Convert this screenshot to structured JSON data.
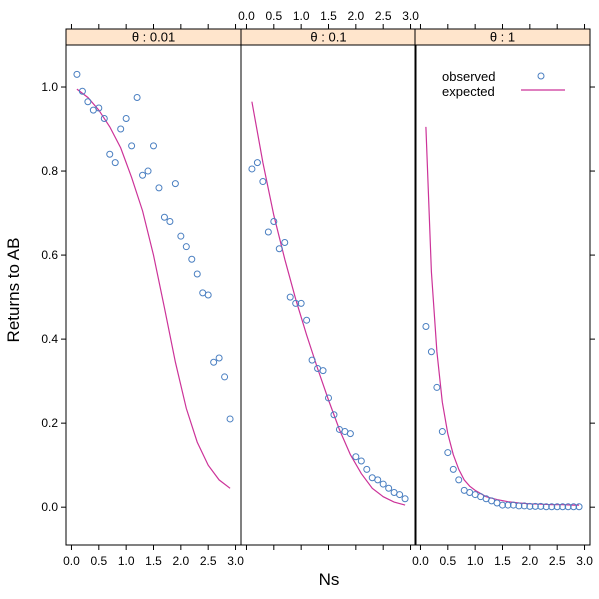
{
  "chart_data": {
    "type": "scatter",
    "layout": "lattice-panels",
    "xlabel": "Ns",
    "ylabel": "Returns to AB",
    "xlim": [
      -0.1,
      3.1
    ],
    "ylim": [
      -0.09,
      1.1
    ],
    "x_ticks": [
      "0.0",
      "0.5",
      "1.0",
      "1.5",
      "2.0",
      "2.5",
      "3.0"
    ],
    "y_ticks": [
      "0.0",
      "0.2",
      "0.4",
      "0.6",
      "0.8",
      "1.0"
    ],
    "x_tick_values": [
      0,
      0.5,
      1.0,
      1.5,
      2.0,
      2.5,
      3.0
    ],
    "y_tick_values": [
      0,
      0.2,
      0.4,
      0.6,
      0.8,
      1.0
    ],
    "colors": {
      "observed": "#4a7fc1",
      "expected": "#cc3399",
      "strip": "#ffe5cc"
    },
    "legend": {
      "placement": "top-right",
      "entries": [
        {
          "label": "observed",
          "symbol": "o"
        },
        {
          "label": "expected",
          "symbol": "line"
        }
      ]
    },
    "panels": [
      {
        "strip_label": "θ : 0.01",
        "observed": {
          "x": [
            0.1,
            0.2,
            0.3,
            0.4,
            0.5,
            0.6,
            0.7,
            0.8,
            0.9,
            1.0,
            1.1,
            1.2,
            1.3,
            1.4,
            1.5,
            1.6,
            1.7,
            1.8,
            1.9,
            2.0,
            2.1,
            2.2,
            2.3,
            2.4,
            2.5,
            2.6,
            2.7,
            2.8,
            2.9
          ],
          "y": [
            1.03,
            0.99,
            0.965,
            0.945,
            0.95,
            0.925,
            0.84,
            0.82,
            0.9,
            0.925,
            0.86,
            0.975,
            0.79,
            0.8,
            0.86,
            0.76,
            0.69,
            0.68,
            0.77,
            0.645,
            0.62,
            0.59,
            0.555,
            0.51,
            0.505,
            0.345,
            0.355,
            0.31,
            0.21
          ]
        },
        "expected": {
          "x": [
            0.1,
            0.3,
            0.5,
            0.7,
            0.9,
            1.1,
            1.3,
            1.5,
            1.7,
            1.9,
            2.1,
            2.3,
            2.5,
            2.7,
            2.9
          ],
          "y": [
            0.995,
            0.975,
            0.945,
            0.905,
            0.855,
            0.785,
            0.705,
            0.6,
            0.475,
            0.345,
            0.235,
            0.155,
            0.1,
            0.065,
            0.045
          ]
        }
      },
      {
        "strip_label": "θ : 0.1",
        "observed": {
          "x": [
            0.1,
            0.2,
            0.3,
            0.4,
            0.5,
            0.6,
            0.7,
            0.8,
            0.9,
            1.0,
            1.1,
            1.2,
            1.3,
            1.4,
            1.5,
            1.6,
            1.7,
            1.8,
            1.9,
            2.0,
            2.1,
            2.2,
            2.3,
            2.4,
            2.5,
            2.6,
            2.7,
            2.8,
            2.9
          ],
          "y": [
            0.805,
            0.82,
            0.775,
            0.655,
            0.68,
            0.615,
            0.63,
            0.5,
            0.485,
            0.485,
            0.445,
            0.35,
            0.33,
            0.325,
            0.26,
            0.22,
            0.185,
            0.18,
            0.175,
            0.12,
            0.11,
            0.09,
            0.07,
            0.065,
            0.055,
            0.045,
            0.035,
            0.03,
            0.02
          ]
        },
        "expected": {
          "x": [
            0.1,
            0.3,
            0.5,
            0.7,
            0.9,
            1.1,
            1.3,
            1.5,
            1.7,
            1.9,
            2.1,
            2.3,
            2.5,
            2.7,
            2.9
          ],
          "y": [
            0.965,
            0.82,
            0.695,
            0.59,
            0.495,
            0.41,
            0.33,
            0.255,
            0.185,
            0.125,
            0.08,
            0.045,
            0.025,
            0.012,
            0.005
          ]
        }
      },
      {
        "strip_label": "θ : 1",
        "observed": {
          "x": [
            0.1,
            0.2,
            0.3,
            0.4,
            0.5,
            0.6,
            0.7,
            0.8,
            0.9,
            1.0,
            1.1,
            1.2,
            1.3,
            1.4,
            1.5,
            1.6,
            1.7,
            1.8,
            1.9,
            2.0,
            2.1,
            2.2,
            2.3,
            2.4,
            2.5,
            2.6,
            2.7,
            2.8,
            2.9
          ],
          "y": [
            0.43,
            0.37,
            0.285,
            0.18,
            0.13,
            0.09,
            0.065,
            0.04,
            0.035,
            0.03,
            0.025,
            0.02,
            0.015,
            0.01,
            0.005,
            0.005,
            0.005,
            0.003,
            0.003,
            0.002,
            0.002,
            0.002,
            0.001,
            0.001,
            0.001,
            0.001,
            0.001,
            0.001,
            0.001
          ]
        },
        "expected": {
          "x": [
            0.1,
            0.2,
            0.3,
            0.4,
            0.5,
            0.6,
            0.7,
            0.8,
            0.9,
            1.0,
            1.2,
            1.4,
            1.6,
            1.8,
            2.0,
            2.2,
            2.4,
            2.6,
            2.8,
            2.9
          ],
          "y": [
            0.905,
            0.56,
            0.37,
            0.25,
            0.175,
            0.125,
            0.09,
            0.065,
            0.05,
            0.04,
            0.025,
            0.018,
            0.013,
            0.01,
            0.008,
            0.007,
            0.006,
            0.006,
            0.005,
            0.005
          ]
        }
      }
    ]
  }
}
